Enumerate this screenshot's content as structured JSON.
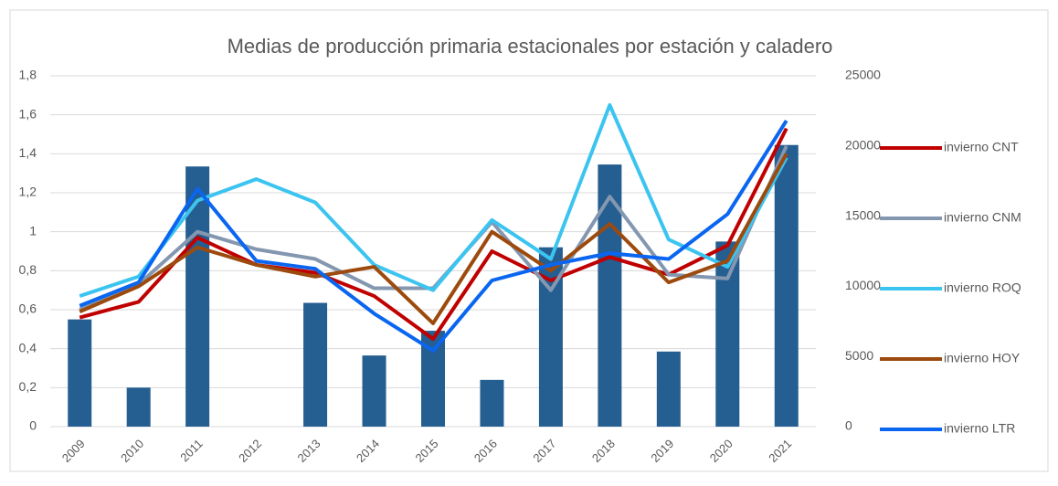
{
  "chart_data": {
    "type": "bar-line",
    "title": "Medias de producción primaria estacionales por estación y caladero",
    "categories": [
      "2009",
      "2010",
      "2011",
      "2012",
      "2013",
      "2014",
      "2015",
      "2016",
      "2017",
      "2018",
      "2019",
      "2020",
      "2021"
    ],
    "ylim": [
      0,
      1.8
    ],
    "yticks": [
      0,
      {
        "value": 0.2,
        "label": "0,2"
      },
      {
        "value": 0.4,
        "label": "0,4"
      },
      {
        "value": 0.6,
        "label": "0,6"
      },
      {
        "value": 0.8,
        "label": "0,8"
      },
      1,
      {
        "value": 1.2,
        "label": "1,2"
      },
      {
        "value": 1.4,
        "label": "1,4"
      },
      {
        "value": 1.6,
        "label": "1,6"
      },
      {
        "value": 1.8,
        "label": "1,8"
      }
    ],
    "y2lim": [
      0,
      25000
    ],
    "y2ticks": [
      0,
      5000,
      10000,
      15000,
      20000,
      25000
    ],
    "grid": true,
    "legend": "right",
    "series": [
      {
        "type": "bar",
        "axis": "y2",
        "color": "#255e91",
        "values": [
          7640,
          2780,
          18540,
          null,
          8820,
          5070,
          6830,
          3330,
          12780,
          18680,
          5350,
          13190,
          20070
        ]
      },
      {
        "type": "line",
        "name": "invierno CNT",
        "color": "#c00000",
        "values": [
          0.56,
          0.64,
          0.97,
          0.83,
          0.79,
          0.67,
          0.45,
          0.9,
          0.75,
          0.87,
          0.78,
          0.93,
          1.53
        ]
      },
      {
        "type": "line",
        "name": "invierno CNM",
        "color": "#8497b0",
        "values": [
          0.6,
          0.73,
          1.0,
          0.91,
          0.86,
          0.71,
          0.71,
          1.05,
          0.7,
          1.18,
          0.78,
          0.76,
          1.44
        ]
      },
      {
        "type": "line",
        "name": "invierno ROQ",
        "color": "#3cc4f0",
        "values": [
          0.67,
          0.77,
          1.16,
          1.27,
          1.15,
          0.83,
          0.7,
          1.06,
          0.86,
          1.65,
          0.96,
          0.82,
          1.38
        ]
      },
      {
        "type": "line",
        "name": "invierno HOY",
        "color": "#9c4a0e",
        "values": [
          0.59,
          0.72,
          0.92,
          0.83,
          0.77,
          0.82,
          0.53,
          1.0,
          0.8,
          1.04,
          0.74,
          0.85,
          1.4
        ]
      },
      {
        "type": "line",
        "name": "invierno LTR",
        "color": "#0a66f0",
        "values": [
          0.62,
          0.74,
          1.22,
          0.85,
          0.81,
          0.58,
          0.39,
          0.75,
          0.83,
          0.89,
          0.86,
          1.09,
          1.57
        ]
      }
    ]
  }
}
